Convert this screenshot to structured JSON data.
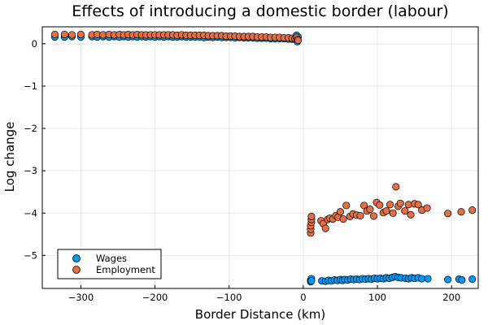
{
  "chart_data": {
    "type": "scatter",
    "title": "Effects of introducing a domestic border (labour)",
    "xlabel": "Border Distance (km)",
    "ylabel": "Log change",
    "xlim": [
      -352,
      236
    ],
    "ylim": [
      -5.78,
      0.4
    ],
    "xticks": [
      -300,
      -200,
      -100,
      0,
      100,
      200
    ],
    "yticks": [
      0,
      -1,
      -2,
      -3,
      -4,
      -5
    ],
    "xtick_labels": [
      "−300",
      "−200",
      "−100",
      "0",
      "100",
      "200"
    ],
    "ytick_labels": [
      "0",
      "−1",
      "−2",
      "−3",
      "−4",
      "−5"
    ],
    "grid": true,
    "legend_position": "bottom-left",
    "series": [
      {
        "name": "Wages",
        "color": "#009AFA",
        "points": [
          [
            -335,
            0.16
          ],
          [
            -322,
            0.16
          ],
          [
            -312,
            0.17
          ],
          [
            -300,
            0.16
          ],
          [
            -285,
            0.17
          ],
          [
            -278,
            0.16
          ],
          [
            -270,
            0.17
          ],
          [
            -262,
            0.16
          ],
          [
            -255,
            0.17
          ],
          [
            -248,
            0.16
          ],
          [
            -242,
            0.17
          ],
          [
            -236,
            0.16
          ],
          [
            -230,
            0.17
          ],
          [
            -224,
            0.16
          ],
          [
            -218,
            0.17
          ],
          [
            -212,
            0.16
          ],
          [
            -206,
            0.17
          ],
          [
            -200,
            0.16
          ],
          [
            -194,
            0.17
          ],
          [
            -188,
            0.16
          ],
          [
            -182,
            0.17
          ],
          [
            -176,
            0.16
          ],
          [
            -170,
            0.16
          ],
          [
            -164,
            0.17
          ],
          [
            -158,
            0.16
          ],
          [
            -152,
            0.16
          ],
          [
            -146,
            0.16
          ],
          [
            -140,
            0.16
          ],
          [
            -134,
            0.15
          ],
          [
            -128,
            0.16
          ],
          [
            -122,
            0.15
          ],
          [
            -116,
            0.16
          ],
          [
            -110,
            0.15
          ],
          [
            -104,
            0.15
          ],
          [
            -98,
            0.15
          ],
          [
            -92,
            0.14
          ],
          [
            -86,
            0.15
          ],
          [
            -80,
            0.14
          ],
          [
            -74,
            0.14
          ],
          [
            -68,
            0.14
          ],
          [
            -62,
            0.13
          ],
          [
            -56,
            0.13
          ],
          [
            -50,
            0.13
          ],
          [
            -44,
            0.12
          ],
          [
            -38,
            0.12
          ],
          [
            -32,
            0.12
          ],
          [
            -26,
            0.12
          ],
          [
            -20,
            0.11
          ],
          [
            -15,
            0.11
          ],
          [
            -11,
            0.1
          ],
          [
            -9,
            0.2
          ],
          [
            -8,
            0.12
          ],
          [
            -8,
            0.05
          ],
          [
            -7,
            0.16
          ],
          [
            10,
            -5.58
          ],
          [
            10,
            -5.62
          ],
          [
            11,
            -5.55
          ],
          [
            11,
            -5.6
          ],
          [
            25,
            -5.6
          ],
          [
            30,
            -5.61
          ],
          [
            34,
            -5.59
          ],
          [
            38,
            -5.6
          ],
          [
            42,
            -5.58
          ],
          [
            46,
            -5.59
          ],
          [
            50,
            -5.57
          ],
          [
            53,
            -5.59
          ],
          [
            56,
            -5.57
          ],
          [
            60,
            -5.58
          ],
          [
            64,
            -5.56
          ],
          [
            68,
            -5.57
          ],
          [
            72,
            -5.56
          ],
          [
            76,
            -5.57
          ],
          [
            80,
            -5.55
          ],
          [
            84,
            -5.56
          ],
          [
            88,
            -5.55
          ],
          [
            92,
            -5.56
          ],
          [
            96,
            -5.54
          ],
          [
            100,
            -5.55
          ],
          [
            104,
            -5.54
          ],
          [
            108,
            -5.55
          ],
          [
            112,
            -5.53
          ],
          [
            116,
            -5.54
          ],
          [
            120,
            -5.52
          ],
          [
            124,
            -5.5
          ],
          [
            128,
            -5.52
          ],
          [
            132,
            -5.53
          ],
          [
            138,
            -5.54
          ],
          [
            142,
            -5.55
          ],
          [
            146,
            -5.53
          ],
          [
            150,
            -5.54
          ],
          [
            155,
            -5.53
          ],
          [
            160,
            -5.55
          ],
          [
            168,
            -5.55
          ],
          [
            195,
            -5.57
          ],
          [
            210,
            -5.56
          ],
          [
            214,
            -5.58
          ],
          [
            228,
            -5.56
          ]
        ]
      },
      {
        "name": "Employment",
        "color": "#E26F46",
        "points": [
          [
            -335,
            0.22
          ],
          [
            -322,
            0.22
          ],
          [
            -312,
            0.21
          ],
          [
            -300,
            0.22
          ],
          [
            -285,
            0.21
          ],
          [
            -278,
            0.22
          ],
          [
            -270,
            0.21
          ],
          [
            -262,
            0.22
          ],
          [
            -255,
            0.21
          ],
          [
            -248,
            0.22
          ],
          [
            -242,
            0.21
          ],
          [
            -236,
            0.22
          ],
          [
            -230,
            0.21
          ],
          [
            -224,
            0.22
          ],
          [
            -218,
            0.21
          ],
          [
            -212,
            0.21
          ],
          [
            -206,
            0.21
          ],
          [
            -200,
            0.21
          ],
          [
            -194,
            0.21
          ],
          [
            -188,
            0.21
          ],
          [
            -182,
            0.21
          ],
          [
            -176,
            0.21
          ],
          [
            -170,
            0.2
          ],
          [
            -164,
            0.21
          ],
          [
            -158,
            0.2
          ],
          [
            -152,
            0.2
          ],
          [
            -146,
            0.2
          ],
          [
            -140,
            0.2
          ],
          [
            -134,
            0.2
          ],
          [
            -128,
            0.19
          ],
          [
            -122,
            0.19
          ],
          [
            -116,
            0.19
          ],
          [
            -110,
            0.19
          ],
          [
            -104,
            0.18
          ],
          [
            -98,
            0.18
          ],
          [
            -92,
            0.18
          ],
          [
            -86,
            0.17
          ],
          [
            -80,
            0.17
          ],
          [
            -74,
            0.17
          ],
          [
            -68,
            0.17
          ],
          [
            -62,
            0.16
          ],
          [
            -56,
            0.16
          ],
          [
            -50,
            0.16
          ],
          [
            -44,
            0.15
          ],
          [
            -38,
            0.15
          ],
          [
            -32,
            0.15
          ],
          [
            -26,
            0.14
          ],
          [
            -20,
            0.14
          ],
          [
            -15,
            0.13
          ],
          [
            -11,
            0.12
          ],
          [
            -9,
            0.15
          ],
          [
            -8,
            0.1
          ],
          [
            -7,
            0.08
          ],
          [
            10,
            -4.47
          ],
          [
            10,
            -4.38
          ],
          [
            10,
            -4.3
          ],
          [
            11,
            -4.22
          ],
          [
            11,
            -4.15
          ],
          [
            11,
            -4.08
          ],
          [
            24,
            -4.18
          ],
          [
            27,
            -4.25
          ],
          [
            30,
            -4.36
          ],
          [
            33,
            -4.15
          ],
          [
            36,
            -4.12
          ],
          [
            40,
            -4.14
          ],
          [
            44,
            -4.06
          ],
          [
            47,
            -4.1
          ],
          [
            50,
            -3.97
          ],
          [
            54,
            -4.14
          ],
          [
            58,
            -3.82
          ],
          [
            63,
            -4.08
          ],
          [
            67,
            -4.02
          ],
          [
            72,
            -4.05
          ],
          [
            77,
            -4.06
          ],
          [
            82,
            -3.82
          ],
          [
            86,
            -3.95
          ],
          [
            90,
            -3.91
          ],
          [
            95,
            -4.07
          ],
          [
            99,
            -3.75
          ],
          [
            103,
            -3.81
          ],
          [
            108,
            -3.99
          ],
          [
            112,
            -3.95
          ],
          [
            117,
            -3.8
          ],
          [
            121,
            -4.0
          ],
          [
            125,
            -3.38
          ],
          [
            128,
            -3.84
          ],
          [
            131,
            -3.77
          ],
          [
            137,
            -3.95
          ],
          [
            142,
            -3.8
          ],
          [
            145,
            -4.04
          ],
          [
            150,
            -3.78
          ],
          [
            155,
            -3.8
          ],
          [
            160,
            -3.93
          ],
          [
            167,
            -3.88
          ],
          [
            195,
            -4.01
          ],
          [
            213,
            -3.97
          ],
          [
            228,
            -3.93
          ]
        ]
      }
    ]
  }
}
